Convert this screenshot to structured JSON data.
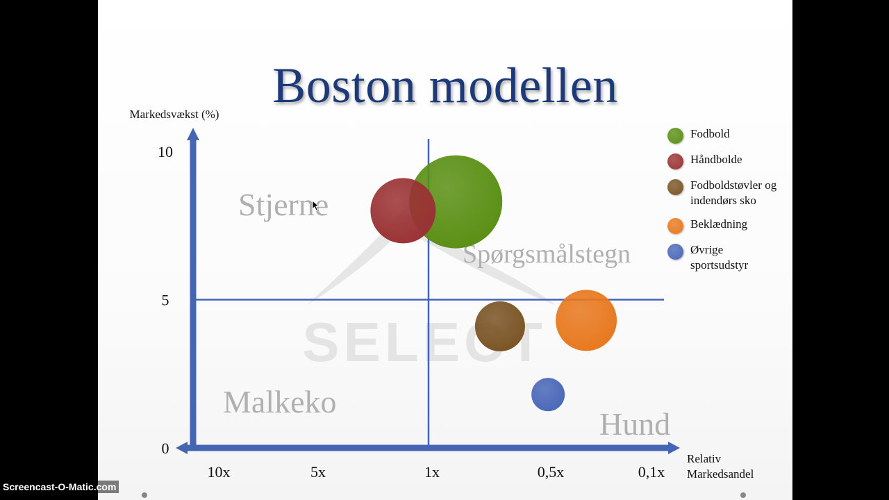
{
  "chart_data": {
    "type": "scatter",
    "title": "Boston modellen",
    "ylabel": "Markedsvækst (%)",
    "xlabel": "Relativ Markedsandel",
    "ylim": [
      0,
      10
    ],
    "yticks": [
      "10",
      "5",
      "0"
    ],
    "xtick_labels": [
      "10x",
      "5x",
      "1x",
      "0,5x",
      "0,1x"
    ],
    "quadrant_labels": [
      "Stjerne",
      "Spørgsmålstegn",
      "Malkeko",
      "Hund"
    ],
    "series": [
      {
        "name": "Fodbold",
        "x": 0.8,
        "y": 8.3,
        "size": 67,
        "color": "#5a8f14"
      },
      {
        "name": "Håndbolde",
        "x": 1.4,
        "y": 8.0,
        "size": 47,
        "color": "#9a3234"
      },
      {
        "name": "Fodboldstøvler og indendørs sko",
        "x": 0.5,
        "y": 4.1,
        "size": 36,
        "color": "#7a5424"
      },
      {
        "name": "Beklædning",
        "x": 0.2,
        "y": 4.3,
        "size": 44,
        "color": "#e8781e"
      },
      {
        "name": "Øvrige sportsudstyr",
        "x": 0.3,
        "y": 1.8,
        "size": 24,
        "color": "#4a68b8"
      }
    ],
    "grid": false,
    "legend_position": "right"
  },
  "legend": [
    {
      "label": "Fodbold",
      "color": "#5a8f14"
    },
    {
      "label": "Håndbolde",
      "color": "#9a3234"
    },
    {
      "label": "Fodboldstøvler og indendørs sko",
      "color": "#7a5424"
    },
    {
      "label": "Beklædning",
      "color": "#e8781e"
    },
    {
      "label": "Øvrige sportsudstyr",
      "color": "#4a68b8"
    }
  ],
  "background_logo": "SELECT",
  "watermark": "Screencast-O-Matic.com",
  "colors": {
    "axis": "#4464b4",
    "title": "#1d3a78",
    "quadrant_text": "#b0b0b0"
  }
}
